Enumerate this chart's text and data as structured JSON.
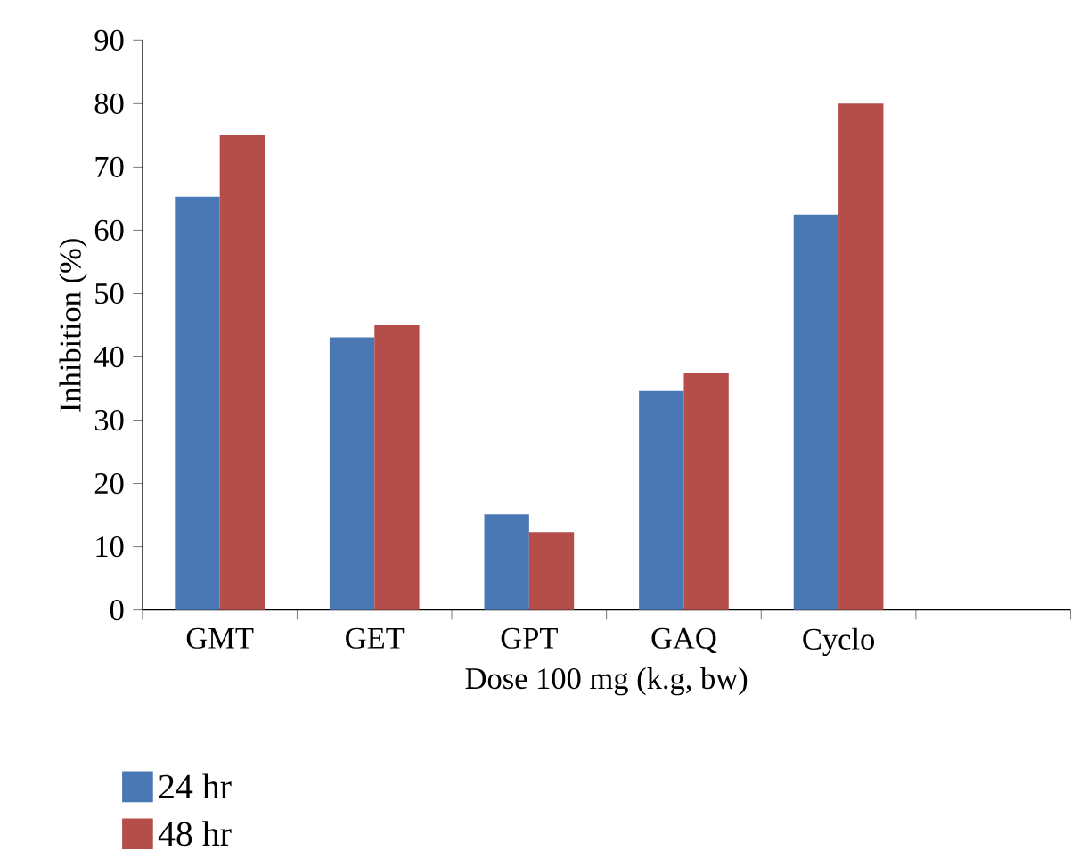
{
  "chart_data": {
    "type": "bar",
    "categories": [
      "GMT",
      "GET",
      "GPT",
      "GAQ",
      "Cyclo",
      null
    ],
    "series": [
      {
        "name": "24 hr",
        "color": "#4a78b4",
        "values": [
          65.3,
          43.1,
          15.1,
          34.6,
          62.5,
          null
        ]
      },
      {
        "name": "48 hr",
        "color": "#b54d4a",
        "values": [
          75,
          45,
          12.3,
          37.4,
          80,
          null
        ]
      }
    ],
    "xlabel": "Dose 100 mg (k.g, bw)",
    "ylabel": "Inhibition (%)",
    "ylim": [
      0,
      90
    ],
    "yticks": [
      0,
      10,
      20,
      30,
      40,
      50,
      60,
      70,
      80,
      90
    ],
    "legend": "bottom left",
    "grid": false
  }
}
